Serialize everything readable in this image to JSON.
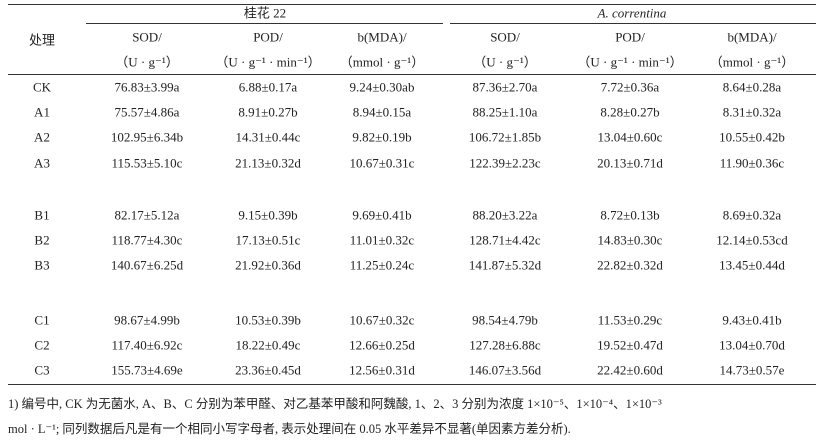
{
  "table": {
    "header": {
      "row_label": "处理",
      "groups": [
        "桂花 22",
        "A. correntina"
      ],
      "columns": [
        {
          "name": "SOD/",
          "unit": "（U · g⁻¹）"
        },
        {
          "name": "POD/",
          "unit": "（U · g⁻¹ · min⁻¹）"
        },
        {
          "name": "b(MDA)/",
          "unit": "（mmol · g⁻¹）"
        }
      ]
    },
    "row_groups": [
      [
        [
          "CK",
          "76.83±3.99a",
          "6.88±0.17a",
          "9.24±0.30ab",
          "87.36±2.70a",
          "7.72±0.36a",
          "8.64±0.28a"
        ],
        [
          "A1",
          "75.57±4.86a",
          "8.91±0.27b",
          "8.94±0.15a",
          "88.25±1.10a",
          "8.28±0.27b",
          "8.31±0.32a"
        ],
        [
          "A2",
          "102.95±6.34b",
          "14.31±0.44c",
          "9.82±0.19b",
          "106.72±1.85b",
          "13.04±0.60c",
          "10.55±0.42b"
        ],
        [
          "A3",
          "115.53±5.10c",
          "21.13±0.32d",
          "10.67±0.31c",
          "122.39±2.23c",
          "20.13±0.71d",
          "11.90±0.36c"
        ]
      ],
      [
        [
          "B1",
          "82.17±5.12a",
          "9.15±0.39b",
          "9.69±0.41b",
          "88.20±3.22a",
          "8.72±0.13b",
          "8.69±0.32a"
        ],
        [
          "B2",
          "118.77±4.30c",
          "17.13±0.51c",
          "11.01±0.32c",
          "128.71±4.42c",
          "14.83±0.30c",
          "12.14±0.53cd"
        ],
        [
          "B3",
          "140.67±6.25d",
          "21.92±0.36d",
          "11.25±0.24c",
          "141.87±5.32d",
          "22.82±0.32d",
          "13.45±0.44d"
        ]
      ],
      [
        [
          "C1",
          "98.67±4.99b",
          "10.53±0.39b",
          "10.67±0.32c",
          "98.54±4.79b",
          "11.53±0.29c",
          "9.43±0.41b"
        ],
        [
          "C2",
          "117.40±6.92c",
          "18.22±0.49c",
          "12.66±0.25d",
          "127.28±6.88c",
          "19.52±0.47d",
          "13.04±0.70d"
        ],
        [
          "C3",
          "155.73±4.69e",
          "23.36±0.45d",
          "12.56±0.31d",
          "146.07±3.56d",
          "22.42±0.60d",
          "14.73±0.57e"
        ]
      ]
    ],
    "footnote": [
      "1) 编号中, CK 为无菌水, A、B、C 分别为苯甲醛、对乙基苯甲酸和阿魏酸, 1、2、3 分别为浓度 1×10⁻⁵、1×10⁻⁴、1×10⁻³",
      "mol · L⁻¹; 同列数据后凡是有一个相同小写字母者, 表示处理间在 0.05 水平差异不显著(单因素方差分析)."
    ]
  }
}
